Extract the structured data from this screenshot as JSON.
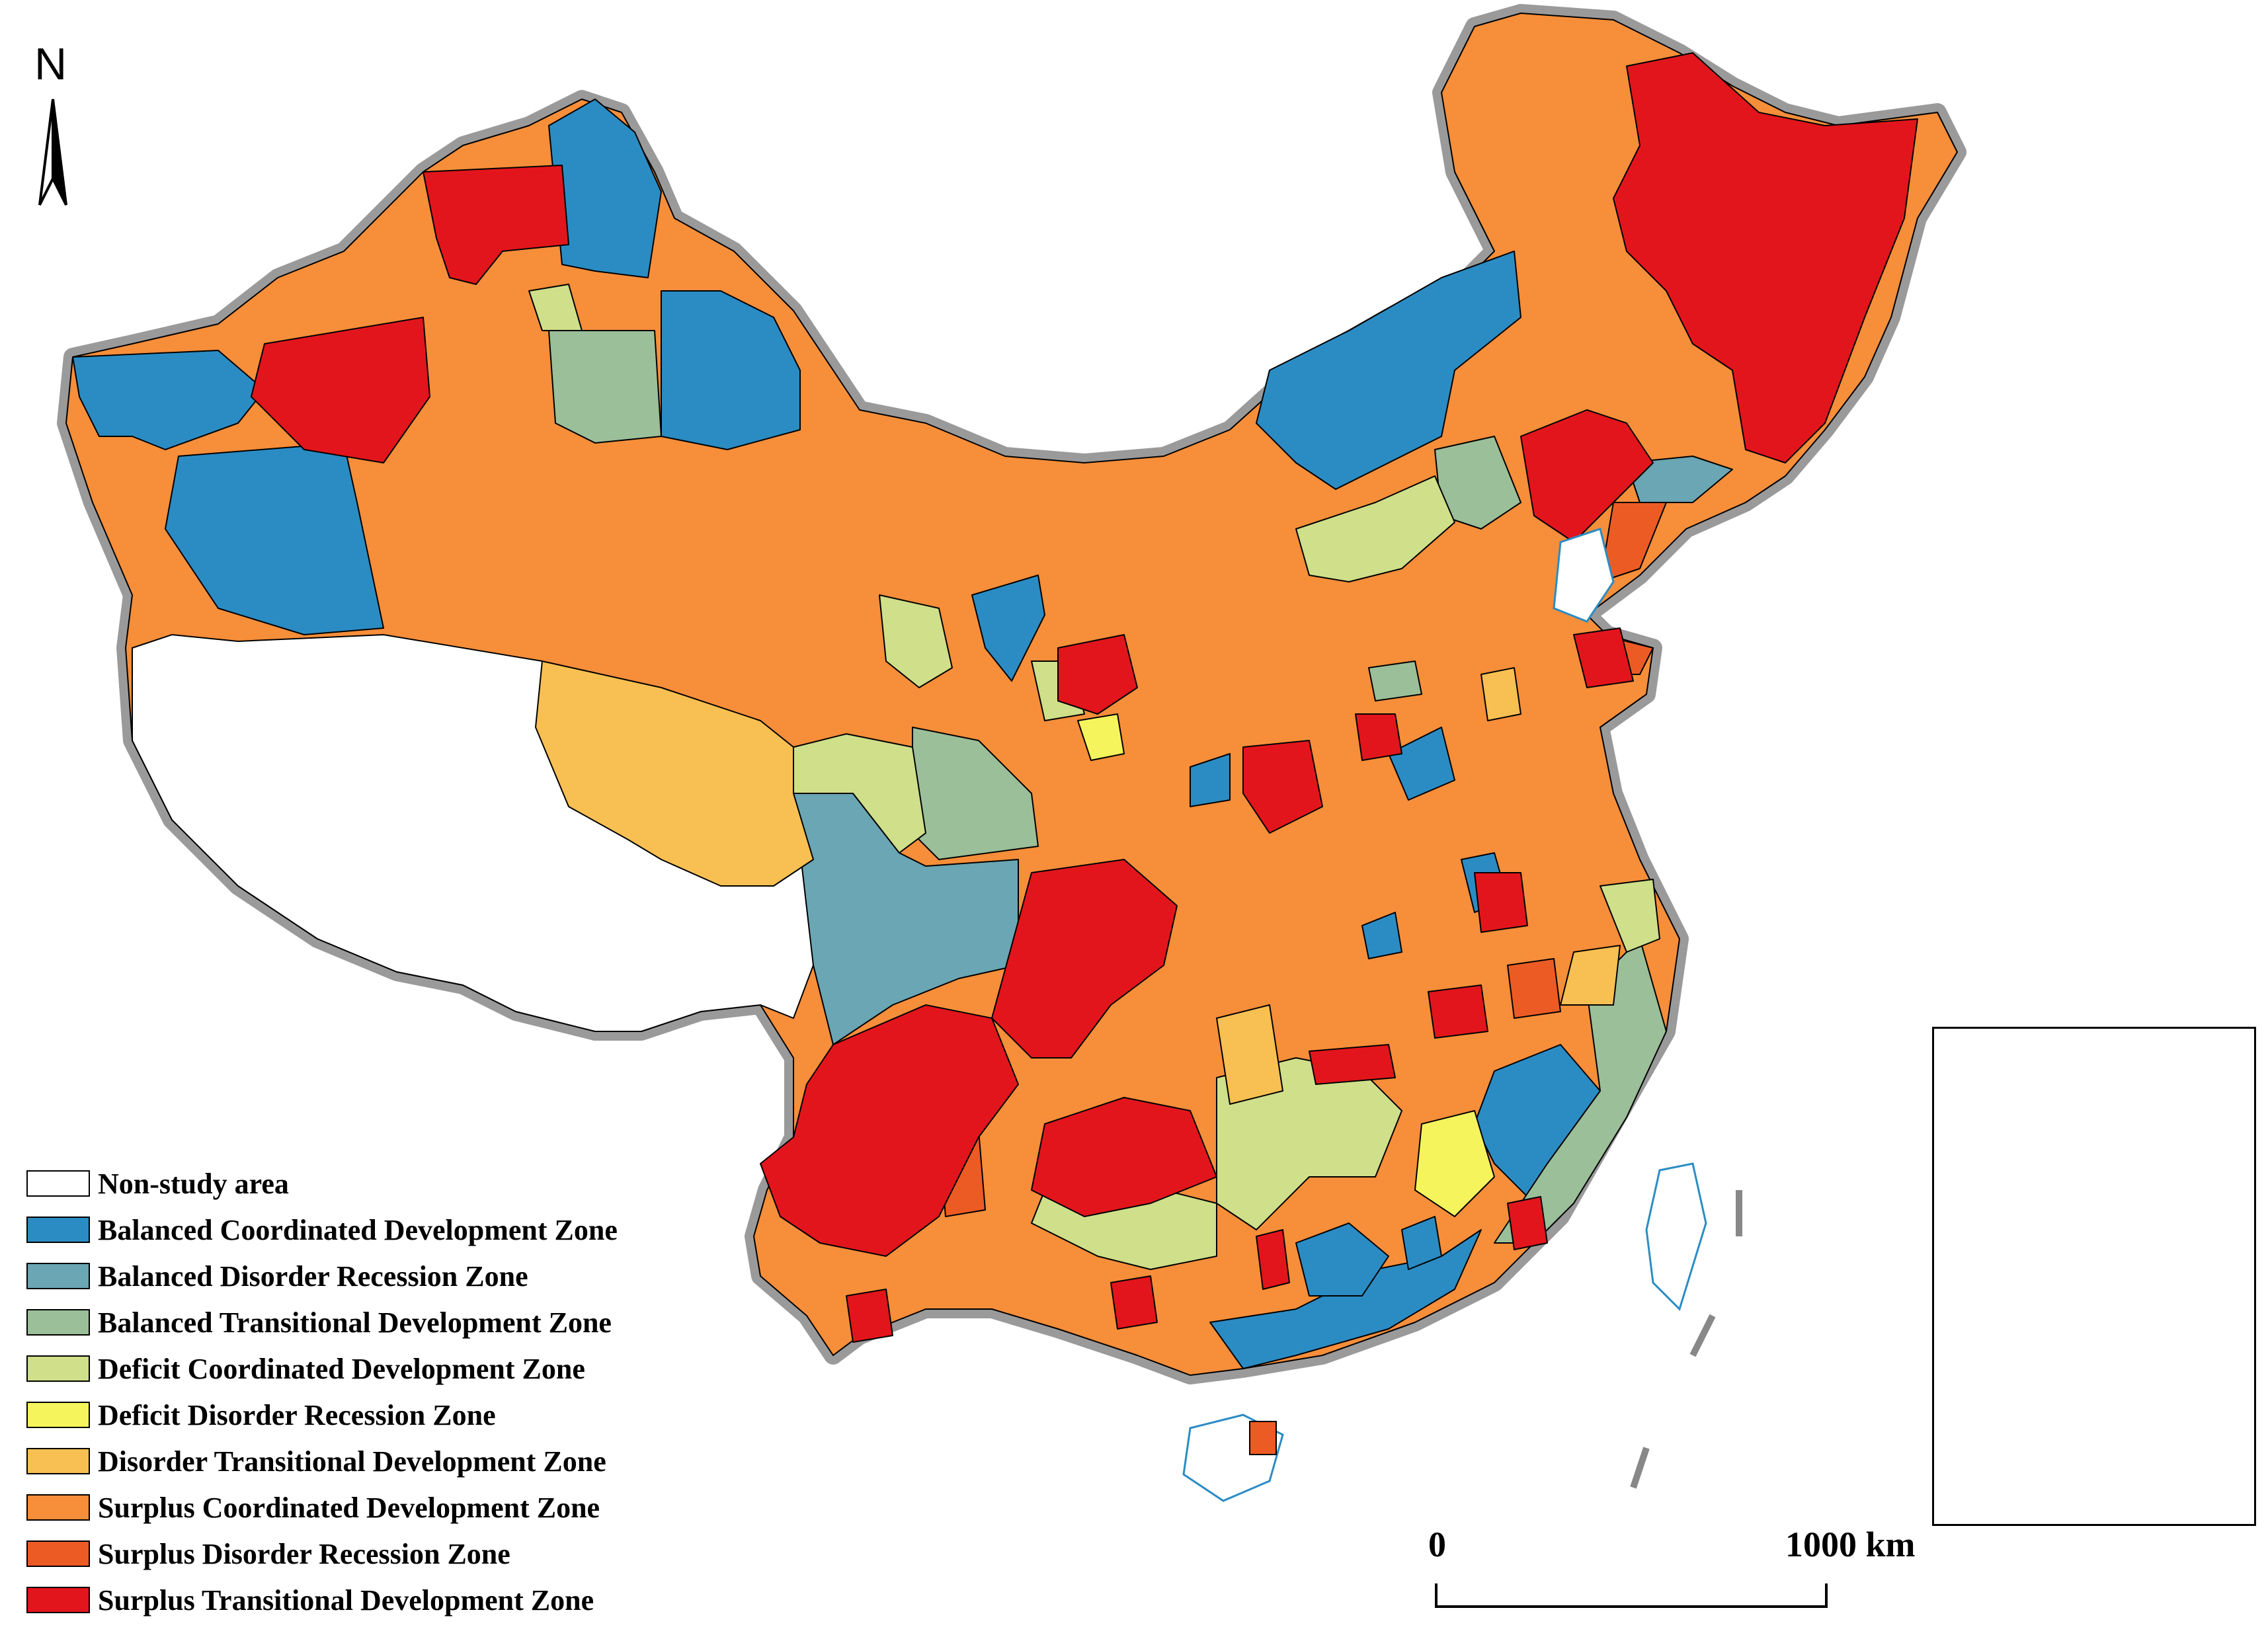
{
  "north_arrow": {
    "label": "N"
  },
  "legend": {
    "items": [
      {
        "label": "Non-study area",
        "color": "#ffffff"
      },
      {
        "label": "Balanced Coordinated Development Zone",
        "color": "#2b8cc4"
      },
      {
        "label": "Balanced Disorder Recession Zone",
        "color": "#6aa6b3"
      },
      {
        "label": "Balanced Transitional Development Zone",
        "color": "#9bbf99"
      },
      {
        "label": "Deficit Coordinated Development Zone",
        "color": "#cfdf8a"
      },
      {
        "label": "Deficit Disorder Recession Zone",
        "color": "#f6f45c"
      },
      {
        "label": "Disorder Transitional Development Zone",
        "color": "#f8c052"
      },
      {
        "label": "Surplus Coordinated Development Zone",
        "color": "#f68e3a"
      },
      {
        "label": "Surplus Disorder Recession Zone",
        "color": "#ed5b25"
      },
      {
        "label": "Surplus Transitional Development Zone",
        "color": "#e3151c"
      }
    ]
  },
  "scale_bar": {
    "start_label": "0",
    "end_label": "1000 km"
  },
  "colors": {
    "boundary_halo": "#9a9a9a",
    "coast_line": "#2b8cc4"
  }
}
